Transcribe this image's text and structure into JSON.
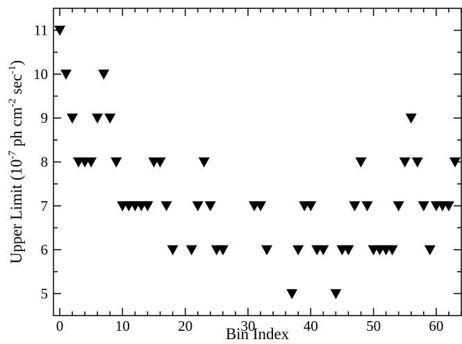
{
  "chart_data": {
    "type": "scatter",
    "marker": "filled-down-triangle",
    "xlabel": "Bin Index",
    "ylabel": {
      "prefix": "Upper Limit (10",
      "exp1": "-7",
      "mid": " ph cm",
      "exp2": "-2",
      "mid2": " sec",
      "exp3": "-1",
      "suffix": ")"
    },
    "xlim": [
      -1,
      64
    ],
    "ylim": [
      4.5,
      11.5
    ],
    "xticks": [
      0,
      10,
      20,
      30,
      40,
      50,
      60
    ],
    "yticks": [
      5,
      6,
      7,
      8,
      9,
      10,
      11
    ],
    "x_minor_step": 2,
    "y_minor_step": 0.5,
    "grid": false,
    "points": [
      [
        0,
        11
      ],
      [
        1,
        10
      ],
      [
        2,
        9
      ],
      [
        3,
        8
      ],
      [
        4,
        8
      ],
      [
        5,
        8
      ],
      [
        6,
        9
      ],
      [
        7,
        10
      ],
      [
        8,
        9
      ],
      [
        9,
        8
      ],
      [
        10,
        7
      ],
      [
        11,
        7
      ],
      [
        12,
        7
      ],
      [
        13,
        7
      ],
      [
        14,
        7
      ],
      [
        15,
        8
      ],
      [
        16,
        8
      ],
      [
        17,
        7
      ],
      [
        18,
        6
      ],
      [
        21,
        6
      ],
      [
        22,
        7
      ],
      [
        23,
        8
      ],
      [
        24,
        7
      ],
      [
        25,
        6
      ],
      [
        26,
        6
      ],
      [
        31,
        7
      ],
      [
        32,
        7
      ],
      [
        33,
        6
      ],
      [
        37,
        5
      ],
      [
        38,
        6
      ],
      [
        39,
        7
      ],
      [
        40,
        7
      ],
      [
        41,
        6
      ],
      [
        42,
        6
      ],
      [
        44,
        5
      ],
      [
        45,
        6
      ],
      [
        46,
        6
      ],
      [
        47,
        7
      ],
      [
        48,
        8
      ],
      [
        49,
        7
      ],
      [
        50,
        6
      ],
      [
        51,
        6
      ],
      [
        52,
        6
      ],
      [
        53,
        6
      ],
      [
        54,
        7
      ],
      [
        55,
        8
      ],
      [
        56,
        9
      ],
      [
        57,
        8
      ],
      [
        58,
        7
      ],
      [
        59,
        6
      ],
      [
        60,
        7
      ],
      [
        61,
        7
      ],
      [
        62,
        7
      ],
      [
        63,
        8
      ]
    ]
  }
}
